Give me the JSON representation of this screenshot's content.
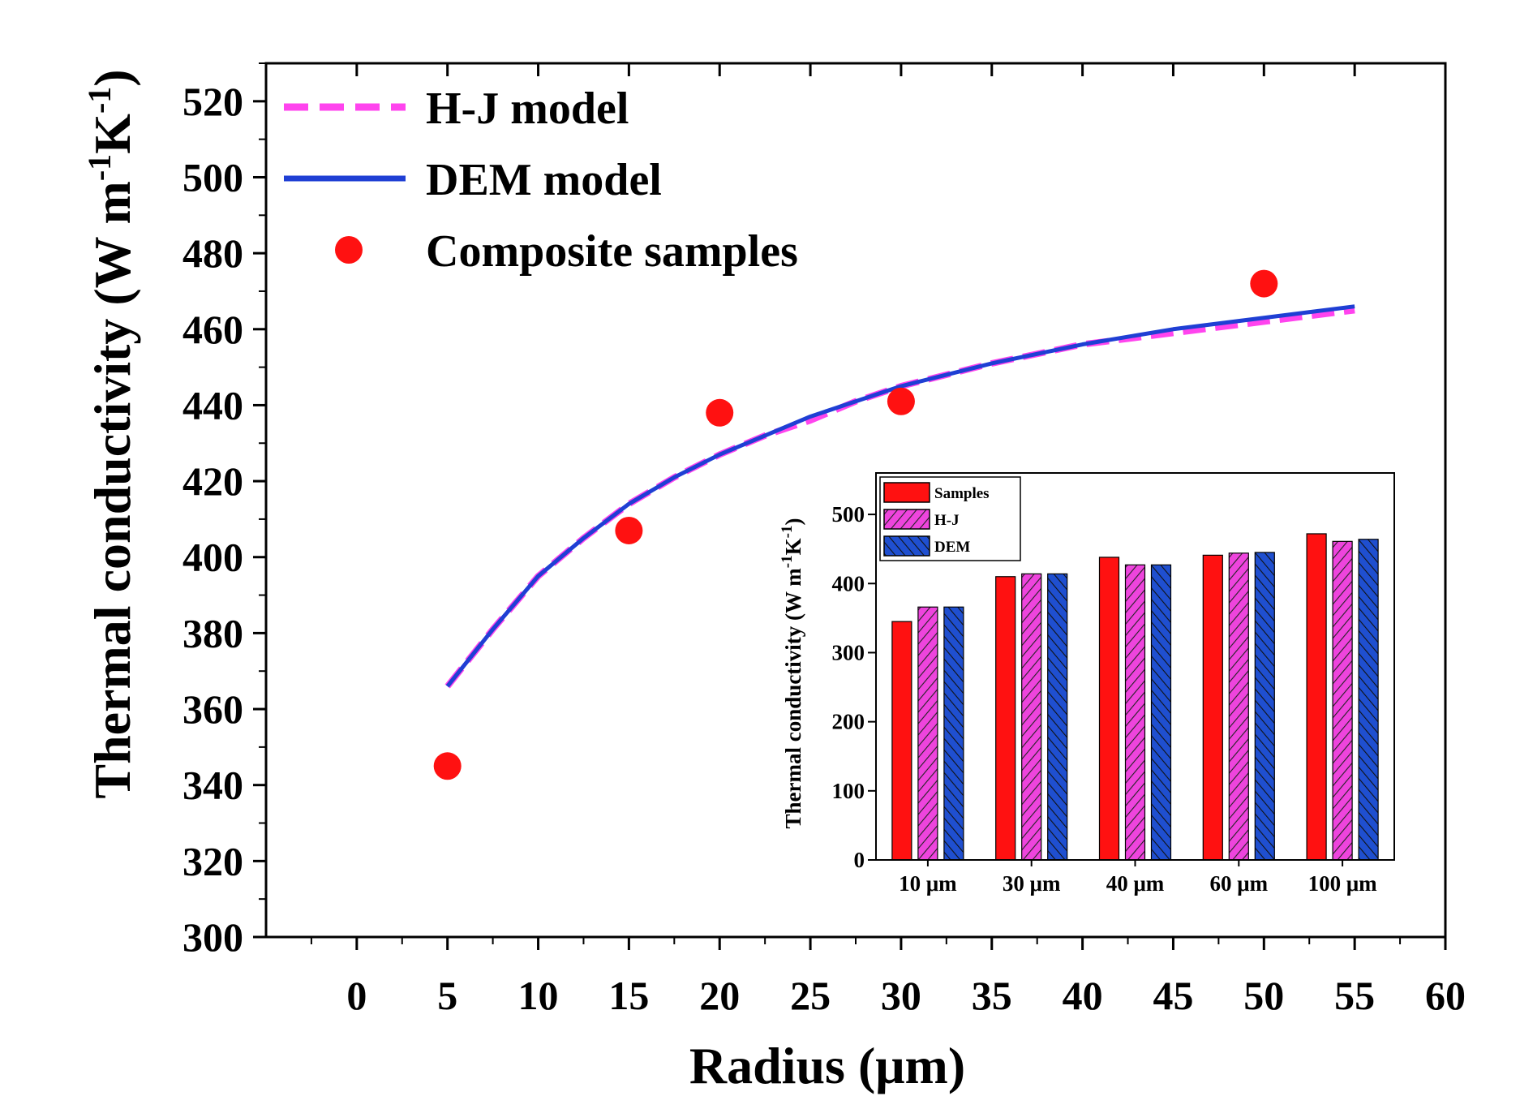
{
  "chart_data": [
    {
      "type": "line",
      "title": "",
      "xlabel": "Radius (μm)",
      "ylabel": "Thermal conductivity (W m",
      "ylabel_sup1": "-1",
      "ylabel_mid": "K",
      "ylabel_sup2": "-1",
      "ylabel_end": ")",
      "xlim": [
        -5,
        60
      ],
      "ylim": [
        300,
        530
      ],
      "xticks": [
        0,
        5,
        10,
        15,
        20,
        25,
        30,
        35,
        40,
        45,
        50,
        55,
        60
      ],
      "yticks": [
        300,
        320,
        340,
        360,
        380,
        400,
        420,
        440,
        460,
        480,
        500,
        520
      ],
      "legend_position": "top-left",
      "series": [
        {
          "name": "H-J model",
          "style": "dashed",
          "color": "#ff44ee",
          "x": [
            5,
            7.5,
            10,
            12.5,
            15,
            17.5,
            20,
            22.5,
            25,
            27.5,
            30,
            35,
            40,
            45,
            50,
            55
          ],
          "y": [
            366,
            381,
            395,
            405,
            414,
            421,
            427,
            432,
            436,
            441,
            445,
            451,
            456,
            459,
            462,
            465
          ]
        },
        {
          "name": "DEM model",
          "style": "solid",
          "color": "#1f3fd4",
          "x": [
            5,
            7.5,
            10,
            12.5,
            15,
            17.5,
            20,
            22.5,
            25,
            27.5,
            30,
            35,
            40,
            45,
            50,
            55
          ],
          "y": [
            366,
            381,
            395,
            405,
            414,
            421,
            427,
            432,
            437,
            441,
            445,
            451,
            456,
            460,
            463,
            466
          ]
        },
        {
          "name": "Composite samples",
          "style": "markers",
          "color": "#ff1111",
          "x": [
            5,
            15,
            20,
            30,
            50
          ],
          "y": [
            345,
            407,
            438,
            441,
            472
          ]
        }
      ]
    },
    {
      "type": "bar",
      "title": "",
      "xlabel": "",
      "ylabel": "Thermal conductivity (W m",
      "ylabel_sup1": "-1",
      "ylabel_mid": "K",
      "ylabel_sup2": "-1",
      "ylabel_end": ")",
      "ylim": [
        0,
        560
      ],
      "yticks": [
        0,
        100,
        200,
        300,
        400,
        500
      ],
      "categories": [
        "10 μm",
        "30 μm",
        "40 μm",
        "60 μm",
        "100 μm"
      ],
      "legend_position": "top-left",
      "series": [
        {
          "name": "Samples",
          "color": "#ff1111",
          "hatch": "none",
          "values": [
            345,
            410,
            438,
            441,
            472
          ]
        },
        {
          "name": "H-J",
          "color": "#ee44dd",
          "hatch": "/",
          "values": [
            366,
            414,
            427,
            444,
            461
          ]
        },
        {
          "name": "DEM",
          "color": "#1f4fd0",
          "hatch": "\\",
          "values": [
            366,
            414,
            427,
            445,
            464
          ]
        }
      ]
    }
  ]
}
